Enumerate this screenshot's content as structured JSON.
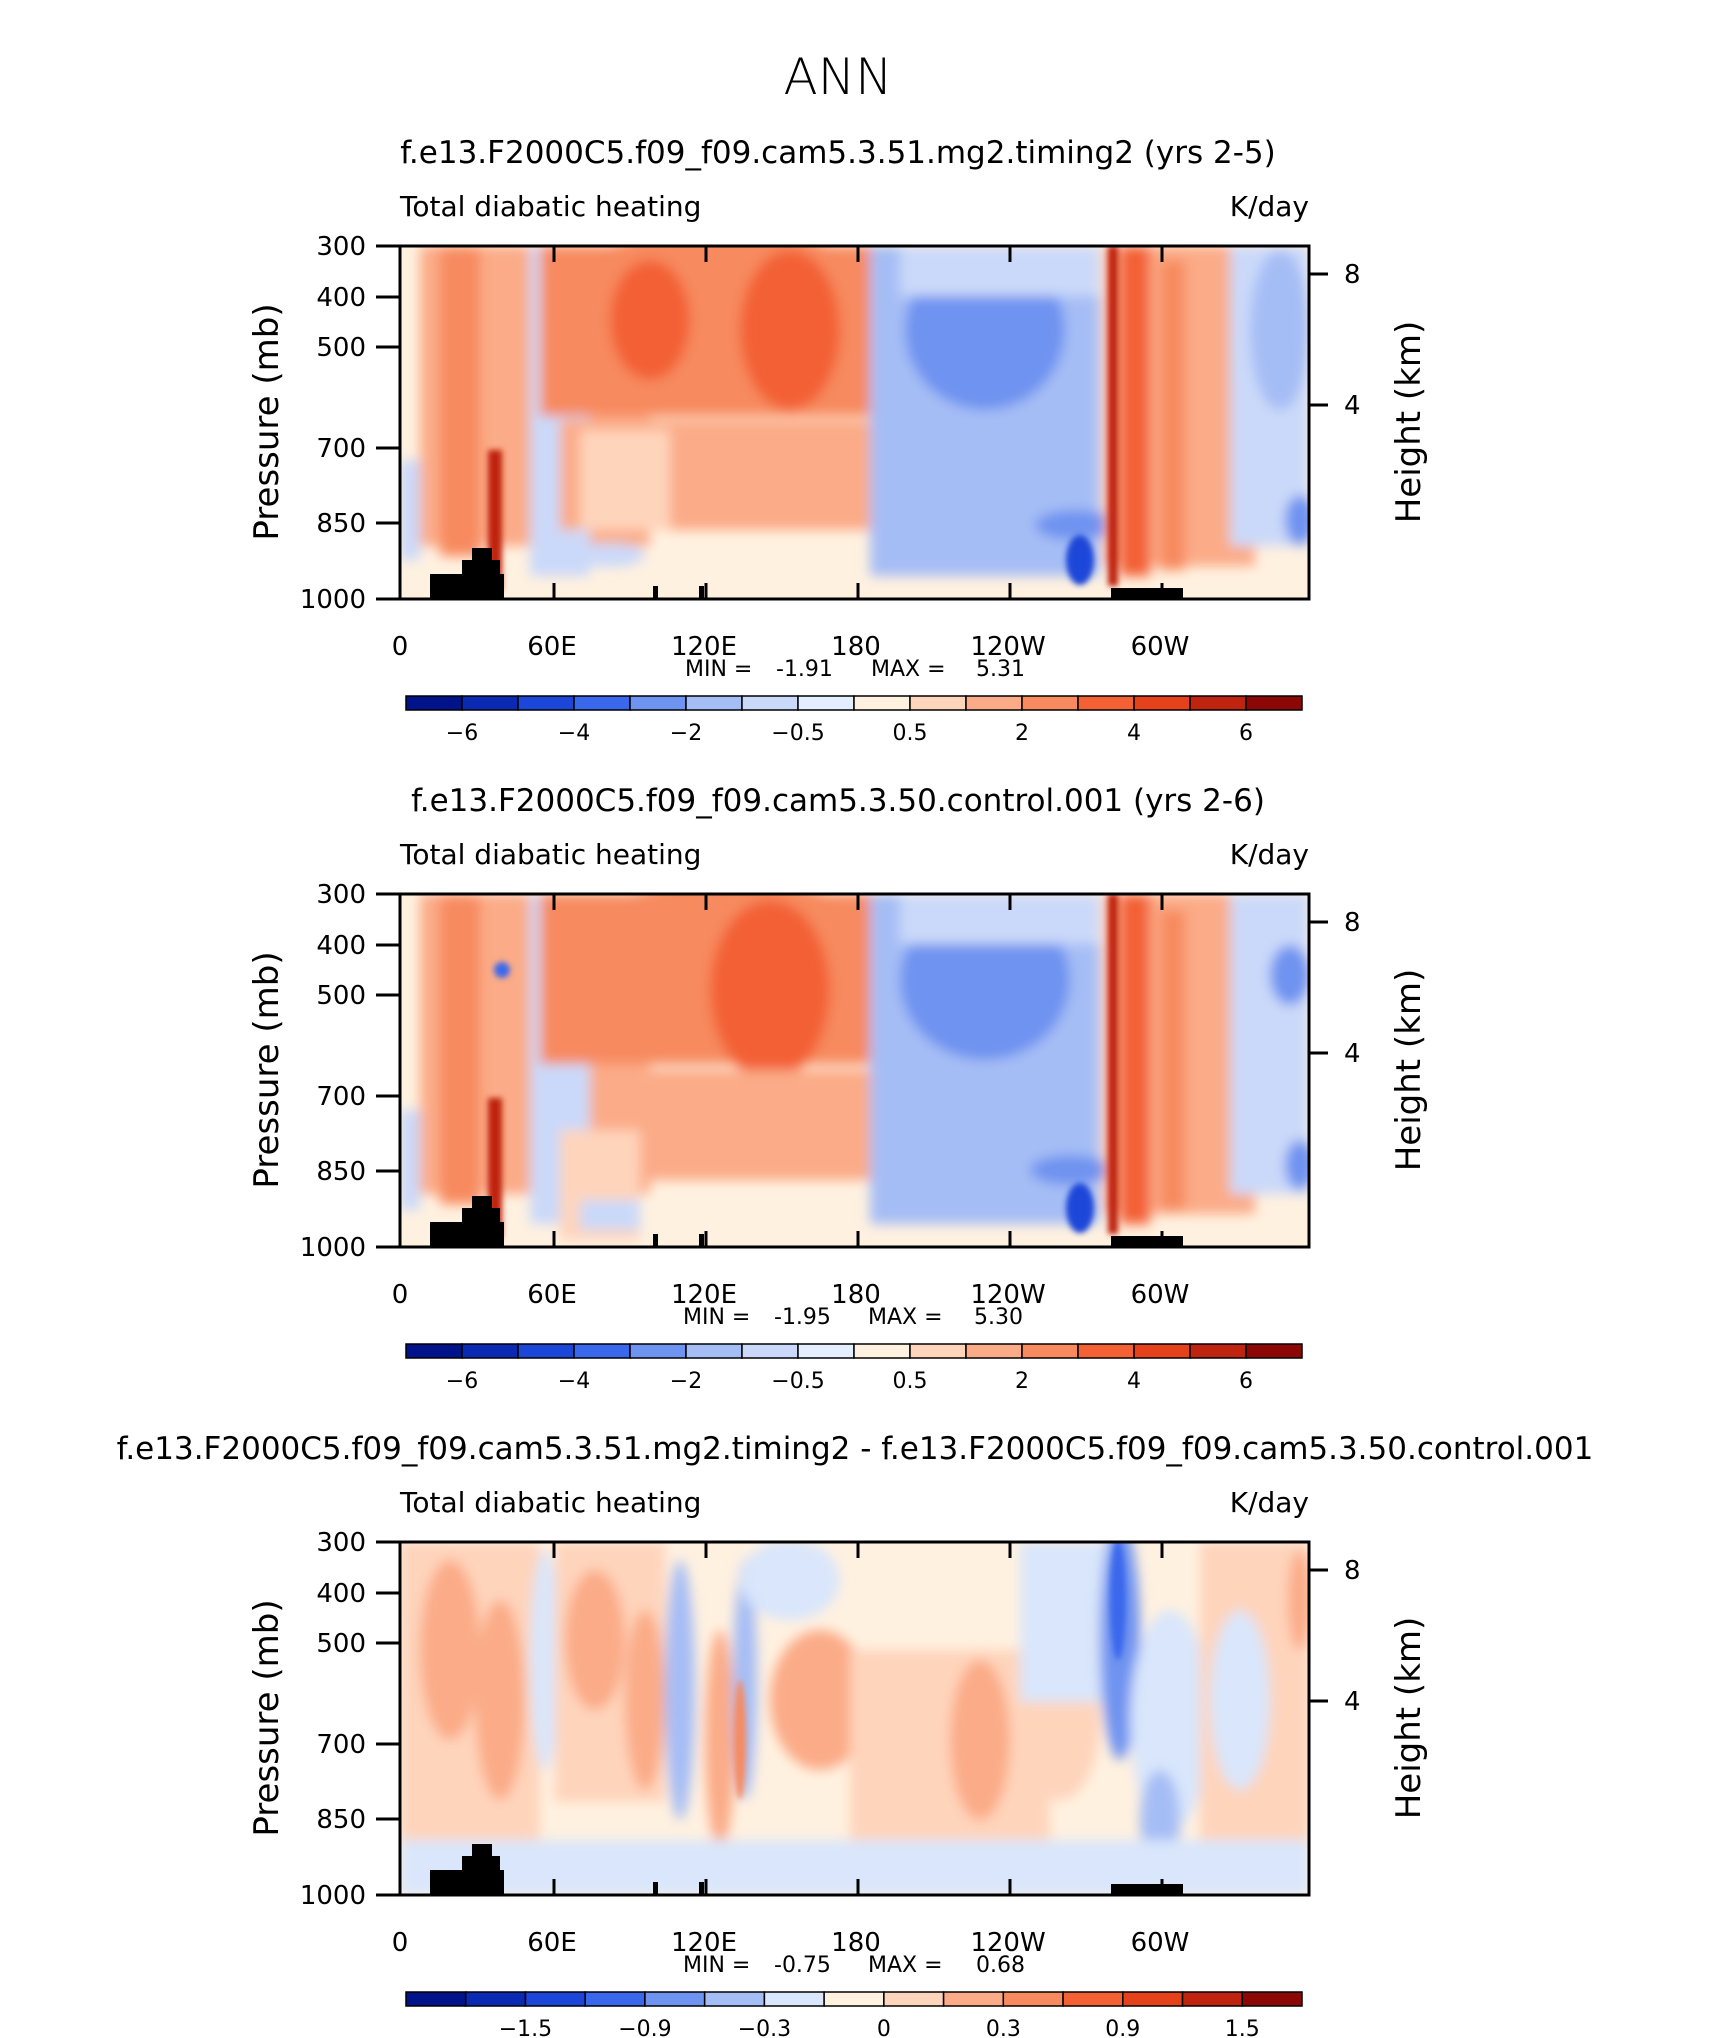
{
  "figure": {
    "title": "ANN",
    "colors": {
      "frame": "#000000",
      "background": "#ffffff",
      "topography": "#000000"
    }
  },
  "chart_data": [
    {
      "type": "heatmap",
      "title": "f.e13.F2000C5.f09_f09.cam5.3.51.mg2.timing2 (yrs 2-5)",
      "left_string": "Total diabatic heating",
      "right_string": "K/day",
      "ylabel": "Pressure (mb)",
      "ylabel_right": "Height (km)",
      "x_ticks": [
        "0",
        "60E",
        "120E",
        "180",
        "120W",
        "60W"
      ],
      "y_ticks": [
        "300",
        "400",
        "500",
        "500",
        "700",
        "850",
        "1000"
      ],
      "y_ticks_right": [
        "8",
        "4"
      ],
      "min_label": "MIN =",
      "min_value": "-1.91",
      "max_label": "MAX =",
      "max_value": "5.31",
      "colorbar_labels": [
        "−6",
        "−4",
        "−2",
        "−0.5",
        "0.5",
        "2",
        "4",
        "6"
      ],
      "colorbar_colors": [
        "#00138a",
        "#0a2ab4",
        "#1b46d8",
        "#3a68ec",
        "#6e93f0",
        "#a5bdf5",
        "#cad9f9",
        "#e3efff",
        "#fff1e0",
        "#fed4bb",
        "#fbab87",
        "#f78a5e",
        "#f36134",
        "#e5421c",
        "#bf2410",
        "#8c0806"
      ],
      "field": "total diabatic heating"
    },
    {
      "type": "heatmap",
      "title": "f.e13.F2000C5.f09_f09.cam5.3.50.control.001 (yrs 2-6)",
      "left_string": "Total diabatic heating",
      "right_string": "K/day",
      "ylabel": "Pressure (mb)",
      "ylabel_right": "Height (km)",
      "x_ticks": [
        "0",
        "60E",
        "120E",
        "180",
        "120W",
        "60W"
      ],
      "y_ticks": [
        "300",
        "400",
        "500",
        "500",
        "700",
        "850",
        "1000"
      ],
      "y_ticks_right": [
        "8",
        "4"
      ],
      "min_label": "MIN =",
      "min_value": "-1.95",
      "max_label": "MAX =",
      "max_value": "5.30",
      "colorbar_labels": [
        "−6",
        "−4",
        "−2",
        "−0.5",
        "0.5",
        "2",
        "4",
        "6"
      ],
      "colorbar_colors": [
        "#00138a",
        "#0a2ab4",
        "#1b46d8",
        "#3a68ec",
        "#6e93f0",
        "#a5bdf5",
        "#cad9f9",
        "#e3efff",
        "#fff1e0",
        "#fed4bb",
        "#fbab87",
        "#f78a5e",
        "#f36134",
        "#e5421c",
        "#bf2410",
        "#8c0806"
      ],
      "field": "total diabatic heating"
    },
    {
      "type": "heatmap",
      "title": "f.e13.F2000C5.f09_f09.cam5.3.51.mg2.timing2 - f.e13.F2000C5.f09_f09.cam5.3.50.control.001",
      "left_string": "Total diabatic heating",
      "right_string": "K/day",
      "ylabel": "Pressure (mb)",
      "ylabel_right": "Height (km)",
      "x_ticks": [
        "0",
        "60E",
        "120E",
        "180",
        "120W",
        "60W"
      ],
      "y_ticks": [
        "300",
        "400",
        "500",
        "500",
        "700",
        "850",
        "1000"
      ],
      "y_ticks_right": [
        "8",
        "4"
      ],
      "min_label": "MIN =",
      "min_value": "-0.75",
      "max_label": "MAX =",
      "max_value": "0.68",
      "colorbar_labels": [
        "−1.5",
        "−0.9",
        "−0.3",
        "0",
        "0.3",
        "0.9",
        "1.5"
      ],
      "colorbar_colors": [
        "#00138a",
        "#0a2ab4",
        "#1b46d8",
        "#3a68ec",
        "#6e93f0",
        "#a5bdf5",
        "#d9e6fb",
        "#fff1e0",
        "#fed4bb",
        "#fbab87",
        "#f78a5e",
        "#f36134",
        "#e5421c",
        "#bf2410",
        "#8c0806"
      ],
      "field": "difference"
    }
  ]
}
